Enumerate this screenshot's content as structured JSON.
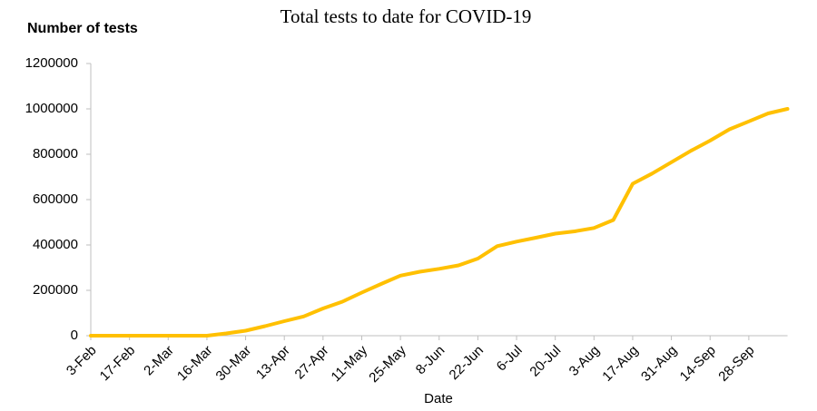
{
  "chart_data": {
    "type": "line",
    "title": "Total tests to date for COVID-19",
    "y_label": "Number of tests",
    "x_label": "Date",
    "categories": [
      "3-Feb",
      null,
      "17-Feb",
      null,
      "2-Mar",
      null,
      "16-Mar",
      null,
      "30-Mar",
      null,
      "13-Apr",
      null,
      "27-Apr",
      null,
      "11-May",
      null,
      "25-May",
      null,
      "8-Jun",
      null,
      "22-Jun",
      null,
      "6-Jul",
      null,
      "20-Jul",
      null,
      "3-Aug",
      null,
      "17-Aug",
      null,
      "31-Aug",
      null,
      "14-Sep",
      null,
      "28-Sep",
      null,
      null
    ],
    "values": [
      0,
      0,
      0,
      0,
      0,
      0,
      0,
      10000,
      22000,
      42000,
      64000,
      85000,
      120000,
      150000,
      190000,
      228000,
      265000,
      282000,
      295000,
      310000,
      340000,
      395000,
      415000,
      432000,
      450000,
      460000,
      475000,
      510000,
      670000,
      715000,
      765000,
      815000,
      860000,
      910000,
      945000,
      980000,
      1000000
    ],
    "color": "#ffc000",
    "ylim": [
      0,
      1200000
    ],
    "yticks": [
      0,
      200000,
      400000,
      600000,
      800000,
      1000000,
      1200000
    ]
  }
}
